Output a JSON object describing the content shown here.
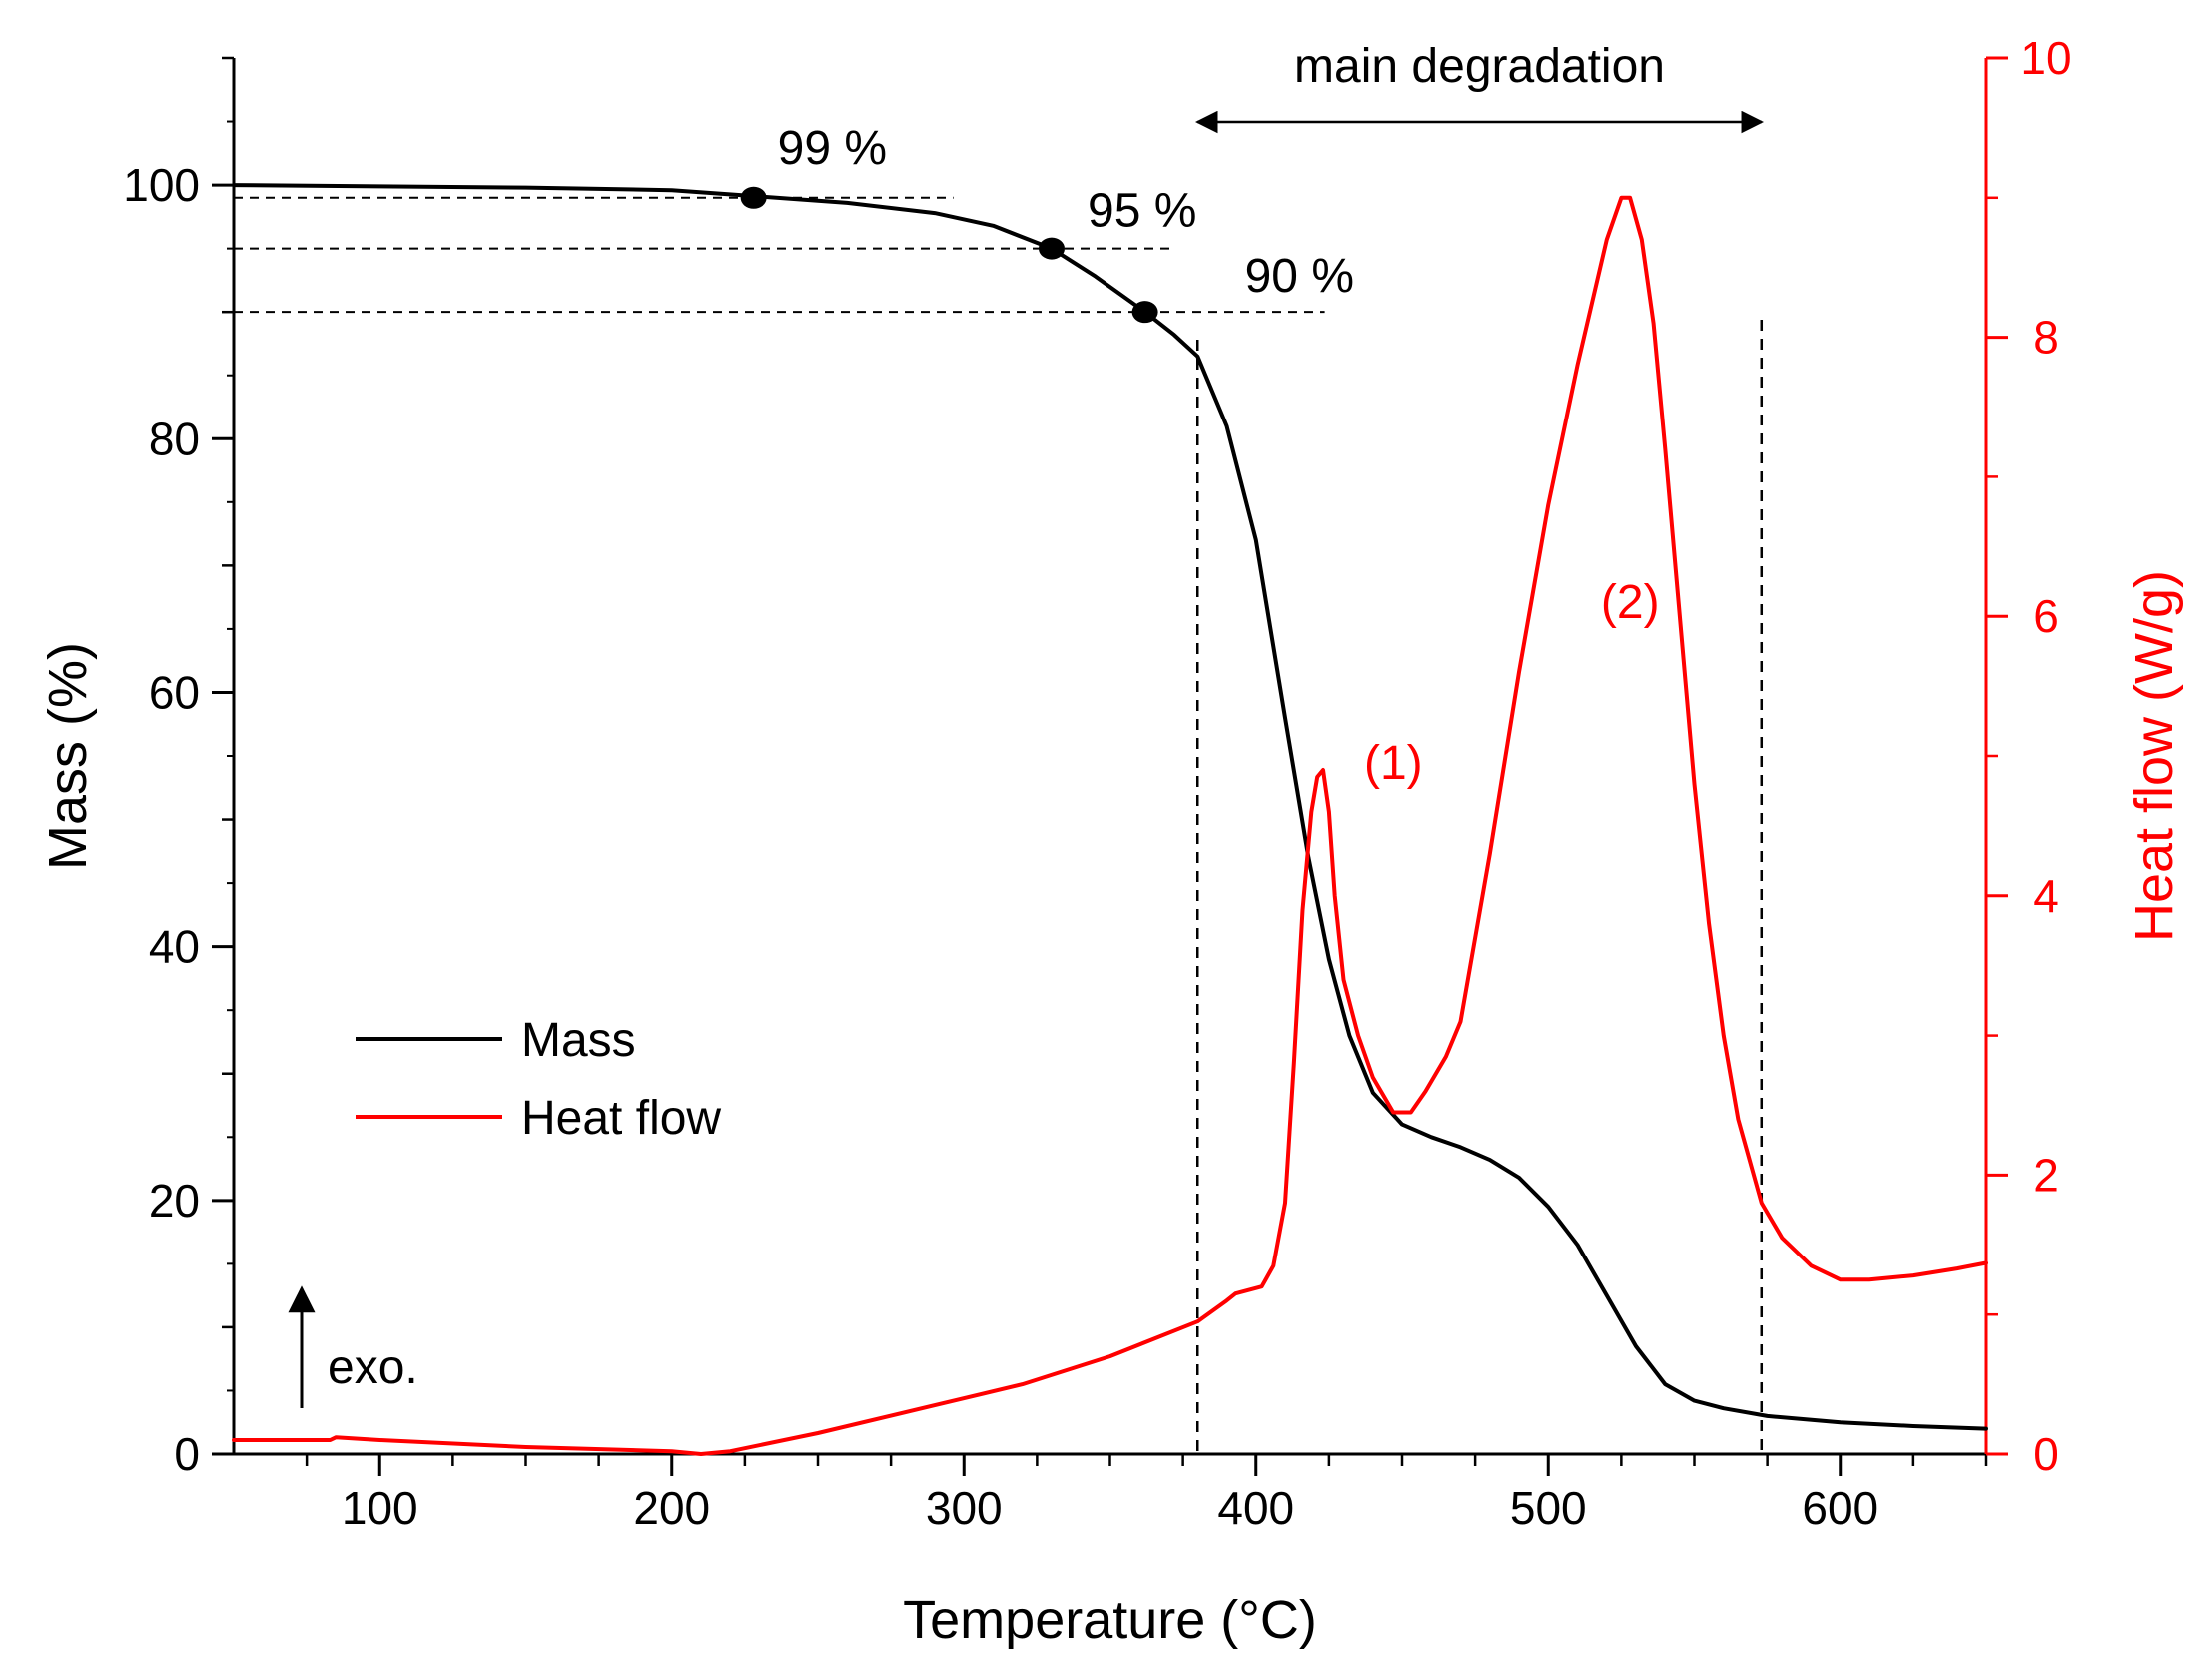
{
  "chart_data": {
    "type": "line",
    "xlabel": "Temperature (°C)",
    "ylabel_left": "Mass (%)",
    "ylabel_right": "Heat flow (W/g)",
    "xlim": [
      50,
      650
    ],
    "ylim_left": [
      0,
      110
    ],
    "ylim_right": [
      0,
      10
    ],
    "x_ticks": [
      100,
      200,
      300,
      400,
      500,
      600
    ],
    "y_left_ticks": [
      0,
      20,
      40,
      60,
      80,
      100
    ],
    "y_right_ticks": [
      0,
      2,
      4,
      6,
      8,
      10
    ],
    "colors": {
      "mass": "#000000",
      "heat_flow": "#ff0000"
    },
    "legend": [
      {
        "name": "Mass",
        "color": "#000000"
      },
      {
        "name": "Heat flow",
        "color": "#ff0000"
      }
    ],
    "series": [
      {
        "name": "Mass",
        "axis": "left",
        "x": [
          50,
          100,
          150,
          200,
          230,
          260,
          290,
          310,
          330,
          345,
          362,
          372,
          380,
          390,
          400,
          410,
          418,
          425,
          432,
          440,
          450,
          460,
          470,
          480,
          490,
          500,
          510,
          520,
          530,
          540,
          550,
          560,
          575,
          600,
          625,
          650
        ],
        "y": [
          100,
          99.9,
          99.8,
          99.6,
          99.1,
          98.6,
          97.8,
          96.8,
          95.0,
          92.8,
          90.0,
          88.2,
          86.5,
          81,
          72,
          58,
          47,
          39,
          33,
          28.5,
          26,
          25,
          24.2,
          23.2,
          21.8,
          19.5,
          16.5,
          12.5,
          8.5,
          5.5,
          4.2,
          3.6,
          3.0,
          2.5,
          2.2,
          2.0
        ]
      },
      {
        "name": "Heat flow",
        "axis": "right",
        "x": [
          50,
          83,
          85,
          100,
          150,
          200,
          210,
          220,
          250,
          290,
          320,
          350,
          380,
          390,
          393,
          402,
          406,
          410,
          413,
          416,
          419,
          421,
          423,
          425,
          427,
          430,
          435,
          440,
          447,
          453,
          458,
          465,
          470,
          480,
          490,
          500,
          510,
          520,
          525,
          528,
          532,
          536,
          540,
          545,
          550,
          555,
          560,
          565,
          573,
          580,
          590,
          600,
          610,
          625,
          640,
          650
        ],
        "y": [
          0.1,
          0.1,
          0.12,
          0.1,
          0.05,
          0.02,
          0.0,
          0.02,
          0.15,
          0.35,
          0.5,
          0.7,
          0.95,
          1.1,
          1.15,
          1.2,
          1.35,
          1.8,
          2.8,
          3.9,
          4.6,
          4.85,
          4.9,
          4.6,
          4.0,
          3.4,
          3.0,
          2.7,
          2.45,
          2.45,
          2.6,
          2.85,
          3.1,
          4.3,
          5.6,
          6.8,
          7.8,
          8.7,
          9.0,
          9.0,
          8.7,
          8.1,
          7.2,
          6.0,
          4.8,
          3.8,
          3.0,
          2.4,
          1.8,
          1.55,
          1.35,
          1.25,
          1.25,
          1.28,
          1.33,
          1.37
        ]
      }
    ],
    "markers": [
      {
        "label": "99 %",
        "temperature": 228,
        "mass": 99
      },
      {
        "label": "95 %",
        "temperature": 330,
        "mass": 95
      },
      {
        "label": "90 %",
        "temperature": 362,
        "mass": 90
      }
    ],
    "main_degradation": {
      "label": "main degradation",
      "start": 380,
      "end": 573
    },
    "peak_labels": [
      {
        "label": "(1)",
        "temperature": 437,
        "heat_flow": 4.85
      },
      {
        "label": "(2)",
        "temperature": 518,
        "heat_flow": 6.0
      }
    ],
    "exo_label": "exo."
  }
}
